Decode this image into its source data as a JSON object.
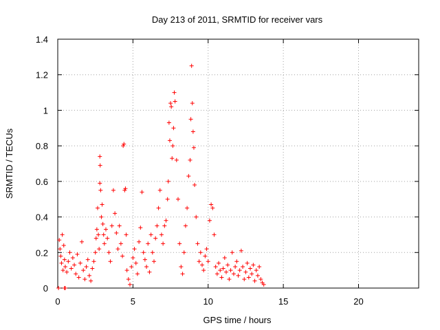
{
  "chart_data": {
    "type": "scatter",
    "title": "Day 213 of 2011, SRMTID for receiver vars",
    "xlabel": "GPS time / hours",
    "ylabel": "SRMTID / TECUs",
    "xlim": [
      0,
      24
    ],
    "ylim": [
      0,
      1.4
    ],
    "x_ticks": [
      0,
      5,
      10,
      15,
      20
    ],
    "x_tick_labels": [
      "0",
      "5",
      "10",
      "15",
      "20"
    ],
    "y_ticks": [
      0,
      0.2,
      0.4,
      0.6,
      0.8,
      1.0,
      1.2,
      1.4
    ],
    "y_tick_labels": [
      "0",
      "0.2",
      "0.4",
      "0.6",
      "0.8",
      "1",
      "1.2",
      "1.4"
    ],
    "grid": true,
    "marker": "+",
    "color": "#ff0000",
    "series": [
      {
        "name": "SRMTID",
        "points": [
          [
            0.05,
            0.0
          ],
          [
            0.45,
            0.0
          ],
          [
            0.5,
            0.0
          ],
          [
            0.1,
            0.27
          ],
          [
            0.15,
            0.22
          ],
          [
            0.2,
            0.18
          ],
          [
            0.25,
            0.14
          ],
          [
            0.3,
            0.3
          ],
          [
            0.35,
            0.1
          ],
          [
            0.4,
            0.24
          ],
          [
            0.45,
            0.16
          ],
          [
            0.5,
            0.12
          ],
          [
            0.6,
            0.09
          ],
          [
            0.7,
            0.15
          ],
          [
            0.8,
            0.2
          ],
          [
            0.9,
            0.11
          ],
          [
            1.0,
            0.17
          ],
          [
            1.1,
            0.13
          ],
          [
            1.2,
            0.08
          ],
          [
            1.3,
            0.19
          ],
          [
            1.4,
            0.06
          ],
          [
            1.5,
            0.14
          ],
          [
            1.6,
            0.26
          ],
          [
            1.7,
            0.1
          ],
          [
            1.8,
            0.05
          ],
          [
            1.9,
            0.12
          ],
          [
            2.0,
            0.16
          ],
          [
            2.1,
            0.07
          ],
          [
            2.2,
            0.04
          ],
          [
            2.3,
            0.11
          ],
          [
            2.4,
            0.15
          ],
          [
            2.5,
            0.2
          ],
          [
            2.55,
            0.28
          ],
          [
            2.6,
            0.33
          ],
          [
            2.65,
            0.45
          ],
          [
            2.7,
            0.3
          ],
          [
            2.75,
            0.22
          ],
          [
            2.8,
            0.59
          ],
          [
            2.85,
            0.55
          ],
          [
            2.9,
            0.4
          ],
          [
            2.95,
            0.47
          ],
          [
            3.0,
            0.36
          ],
          [
            3.05,
            0.3
          ],
          [
            3.1,
            0.25
          ],
          [
            2.8,
            0.74
          ],
          [
            2.82,
            0.69
          ],
          [
            3.2,
            0.33
          ],
          [
            3.3,
            0.28
          ],
          [
            3.4,
            0.2
          ],
          [
            3.5,
            0.15
          ],
          [
            3.6,
            0.35
          ],
          [
            3.7,
            0.55
          ],
          [
            3.8,
            0.42
          ],
          [
            3.9,
            0.31
          ],
          [
            4.0,
            0.22
          ],
          [
            4.1,
            0.35
          ],
          [
            4.2,
            0.25
          ],
          [
            4.3,
            0.18
          ],
          [
            4.35,
            0.8
          ],
          [
            4.4,
            0.81
          ],
          [
            4.45,
            0.55
          ],
          [
            4.5,
            0.56
          ],
          [
            4.55,
            0.3
          ],
          [
            4.6,
            0.1
          ],
          [
            4.7,
            0.05
          ],
          [
            4.8,
            0.02
          ],
          [
            4.9,
            0.12
          ],
          [
            5.0,
            0.17
          ],
          [
            5.1,
            0.22
          ],
          [
            5.2,
            0.14
          ],
          [
            5.3,
            0.08
          ],
          [
            5.4,
            0.26
          ],
          [
            5.5,
            0.34
          ],
          [
            5.6,
            0.54
          ],
          [
            5.7,
            0.2
          ],
          [
            5.8,
            0.16
          ],
          [
            5.9,
            0.12
          ],
          [
            6.0,
            0.25
          ],
          [
            6.1,
            0.09
          ],
          [
            6.2,
            0.3
          ],
          [
            6.3,
            0.2
          ],
          [
            6.4,
            0.15
          ],
          [
            6.5,
            0.28
          ],
          [
            6.6,
            0.35
          ],
          [
            6.7,
            0.45
          ],
          [
            6.8,
            0.55
          ],
          [
            6.9,
            0.3
          ],
          [
            7.0,
            0.25
          ],
          [
            7.1,
            0.35
          ],
          [
            7.2,
            0.38
          ],
          [
            7.3,
            0.5
          ],
          [
            7.35,
            0.6
          ],
          [
            7.4,
            0.93
          ],
          [
            7.45,
            0.83
          ],
          [
            7.5,
            1.04
          ],
          [
            7.55,
            1.02
          ],
          [
            7.6,
            0.73
          ],
          [
            7.65,
            0.8
          ],
          [
            7.7,
            0.9
          ],
          [
            7.75,
            1.1
          ],
          [
            7.8,
            1.05
          ],
          [
            7.9,
            0.72
          ],
          [
            8.0,
            0.5
          ],
          [
            8.1,
            0.25
          ],
          [
            8.2,
            0.12
          ],
          [
            8.3,
            0.08
          ],
          [
            8.4,
            0.2
          ],
          [
            8.5,
            0.35
          ],
          [
            8.6,
            0.45
          ],
          [
            8.7,
            0.63
          ],
          [
            8.8,
            0.72
          ],
          [
            8.85,
            0.95
          ],
          [
            8.9,
            1.25
          ],
          [
            8.95,
            1.04
          ],
          [
            9.0,
            0.88
          ],
          [
            9.05,
            0.79
          ],
          [
            9.1,
            0.58
          ],
          [
            9.2,
            0.4
          ],
          [
            9.3,
            0.25
          ],
          [
            9.4,
            0.15
          ],
          [
            9.5,
            0.2
          ],
          [
            9.6,
            0.13
          ],
          [
            9.7,
            0.1
          ],
          [
            9.8,
            0.18
          ],
          [
            9.9,
            0.22
          ],
          [
            10.0,
            0.15
          ],
          [
            10.1,
            0.38
          ],
          [
            10.2,
            0.47
          ],
          [
            10.3,
            0.45
          ],
          [
            10.4,
            0.3
          ],
          [
            10.5,
            0.12
          ],
          [
            10.6,
            0.08
          ],
          [
            10.7,
            0.14
          ],
          [
            10.8,
            0.1
          ],
          [
            10.9,
            0.06
          ],
          [
            11.0,
            0.11
          ],
          [
            11.1,
            0.17
          ],
          [
            11.2,
            0.09
          ],
          [
            11.3,
            0.13
          ],
          [
            11.4,
            0.05
          ],
          [
            11.5,
            0.1
          ],
          [
            11.6,
            0.2
          ],
          [
            11.7,
            0.08
          ],
          [
            11.8,
            0.12
          ],
          [
            11.9,
            0.15
          ],
          [
            12.0,
            0.07
          ],
          [
            12.1,
            0.1
          ],
          [
            12.2,
            0.21
          ],
          [
            12.3,
            0.12
          ],
          [
            12.4,
            0.05
          ],
          [
            12.5,
            0.09
          ],
          [
            12.6,
            0.14
          ],
          [
            12.7,
            0.06
          ],
          [
            12.8,
            0.11
          ],
          [
            12.9,
            0.08
          ],
          [
            13.0,
            0.13
          ],
          [
            13.1,
            0.04
          ],
          [
            13.2,
            0.1
          ],
          [
            13.3,
            0.07
          ],
          [
            13.4,
            0.12
          ],
          [
            13.5,
            0.05
          ],
          [
            13.6,
            0.03
          ],
          [
            13.7,
            0.02
          ]
        ]
      }
    ]
  }
}
